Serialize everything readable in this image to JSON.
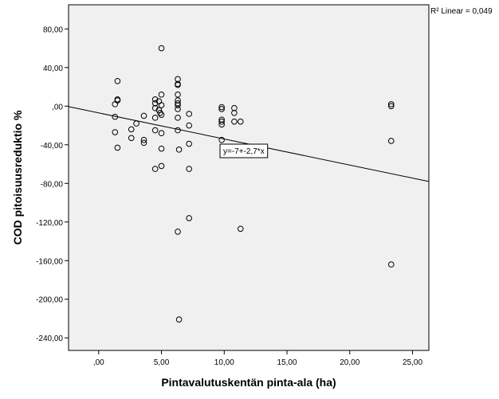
{
  "chart_data": {
    "type": "scatter",
    "xlabel": "Pintavalutuskentän pinta-ala (ha)",
    "ylabel": "COD pitoisuusreduktio %",
    "xlim": [
      -2.4,
      26.3
    ],
    "ylim": [
      -253,
      105
    ],
    "x_ticks": [
      {
        "value": 0,
        "label": ",00"
      },
      {
        "value": 5,
        "label": "5,00"
      },
      {
        "value": 10,
        "label": "10,00"
      },
      {
        "value": 15,
        "label": "15,00"
      },
      {
        "value": 20,
        "label": "20,00"
      },
      {
        "value": 25,
        "label": "25,00"
      }
    ],
    "y_ticks": [
      {
        "value": 80,
        "label": "80,00"
      },
      {
        "value": 40,
        "label": "40,00"
      },
      {
        "value": 0,
        "label": ",00"
      },
      {
        "value": -40,
        "label": "-40,00"
      },
      {
        "value": -80,
        "label": "-80,00"
      },
      {
        "value": -120,
        "label": "-120,00"
      },
      {
        "value": -160,
        "label": "-160,00"
      },
      {
        "value": -200,
        "label": "-200,00"
      },
      {
        "value": -240,
        "label": "-240,00"
      }
    ],
    "points": [
      [
        1.3,
        2
      ],
      [
        1.5,
        6
      ],
      [
        1.5,
        7
      ],
      [
        1.5,
        26
      ],
      [
        1.3,
        -11
      ],
      [
        1.3,
        -27
      ],
      [
        1.5,
        -43
      ],
      [
        2.6,
        -24
      ],
      [
        2.6,
        -33
      ],
      [
        3.0,
        -18
      ],
      [
        3.6,
        -10
      ],
      [
        3.6,
        -35
      ],
      [
        3.6,
        -38
      ],
      [
        4.5,
        7
      ],
      [
        4.5,
        3
      ],
      [
        4.5,
        -2
      ],
      [
        4.5,
        -12
      ],
      [
        4.5,
        -25
      ],
      [
        4.5,
        -65
      ],
      [
        4.8,
        5
      ],
      [
        4.8,
        -4
      ],
      [
        4.9,
        -7
      ],
      [
        5.0,
        1
      ],
      [
        5.0,
        12
      ],
      [
        5.0,
        -9
      ],
      [
        5.0,
        -28
      ],
      [
        5.0,
        -44
      ],
      [
        5.0,
        -62
      ],
      [
        5.0,
        60
      ],
      [
        6.3,
        28
      ],
      [
        6.3,
        23
      ],
      [
        6.3,
        22
      ],
      [
        6.3,
        12
      ],
      [
        6.3,
        6
      ],
      [
        6.3,
        3
      ],
      [
        6.3,
        1
      ],
      [
        6.3,
        -3
      ],
      [
        6.3,
        -12
      ],
      [
        6.3,
        -25
      ],
      [
        6.3,
        -130
      ],
      [
        6.4,
        -45
      ],
      [
        6.4,
        -221
      ],
      [
        7.2,
        -8
      ],
      [
        7.2,
        -20
      ],
      [
        7.2,
        -39
      ],
      [
        7.2,
        -65
      ],
      [
        7.2,
        -116
      ],
      [
        9.8,
        -1
      ],
      [
        9.8,
        -3
      ],
      [
        9.8,
        -14
      ],
      [
        9.8,
        -16
      ],
      [
        9.8,
        -19
      ],
      [
        9.8,
        -35
      ],
      [
        10.8,
        -2
      ],
      [
        10.8,
        -7
      ],
      [
        10.8,
        -16
      ],
      [
        10.8,
        -50
      ],
      [
        11.3,
        -16
      ],
      [
        11.3,
        -127
      ],
      [
        23.3,
        2
      ],
      [
        23.3,
        0
      ],
      [
        23.3,
        -36
      ],
      [
        23.3,
        -164
      ]
    ],
    "fit_line": {
      "intercept": -7,
      "slope": -2.7
    },
    "fit_equation": "y=-7+-2,7*x",
    "r2_text": "R² Linear = 0,049"
  }
}
